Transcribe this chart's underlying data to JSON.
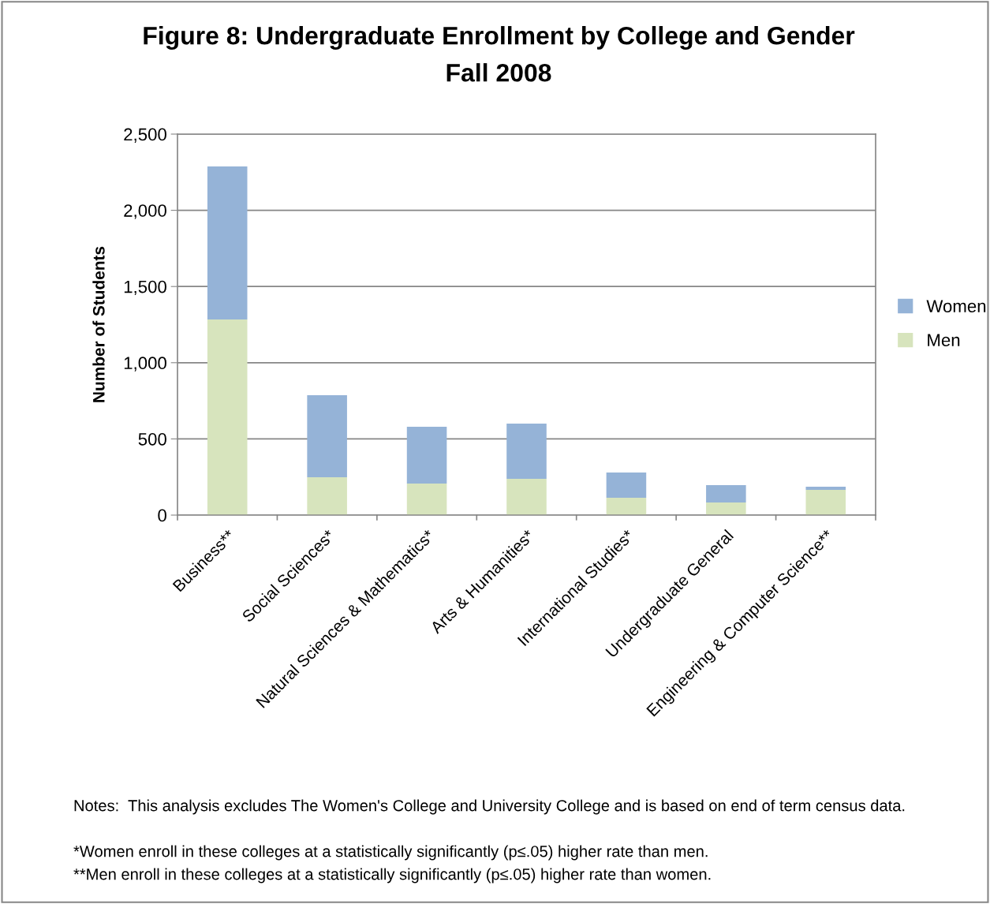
{
  "chart_data": {
    "type": "bar",
    "title": "Figure 8: Undergraduate Enrollment by College and Gender",
    "subtitle": "Fall 2008",
    "ylabel": "Number of Students",
    "categories": [
      "Business**",
      "Social Sciences*",
      "Natural Sciences & Mathematics*",
      "Arts & Humanities*",
      "International Studies*",
      "Undergraduate General",
      "Engineering & Computer Science**"
    ],
    "series": [
      {
        "name": "Men",
        "color": "#d7e4bd",
        "values": [
          1284,
          248,
          207,
          238,
          114,
          83,
          166
        ]
      },
      {
        "name": "Women",
        "color": "#95b3d7",
        "values": [
          1004,
          539,
          373,
          362,
          166,
          114,
          20
        ]
      }
    ],
    "stacked": true,
    "ylim": [
      0,
      2500
    ],
    "yticks": [
      {
        "value": 0,
        "label": "0"
      },
      {
        "value": 500,
        "label": "500"
      },
      {
        "value": 1000,
        "label": "1,000"
      },
      {
        "value": 1500,
        "label": "1,500"
      },
      {
        "value": 2000,
        "label": "2,000"
      },
      {
        "value": 2500,
        "label": "2,500"
      }
    ],
    "grid": "y",
    "legend": "right",
    "annotations": [
      "Notes:  This analysis excludes The Women's College and University College and is based on end of term census data.",
      "*Women enroll in these colleges at a statistically significantly (p≤.05) higher rate than men.",
      "**Men enroll in these colleges at a statistically significantly (p≤.05) higher rate than women."
    ]
  }
}
